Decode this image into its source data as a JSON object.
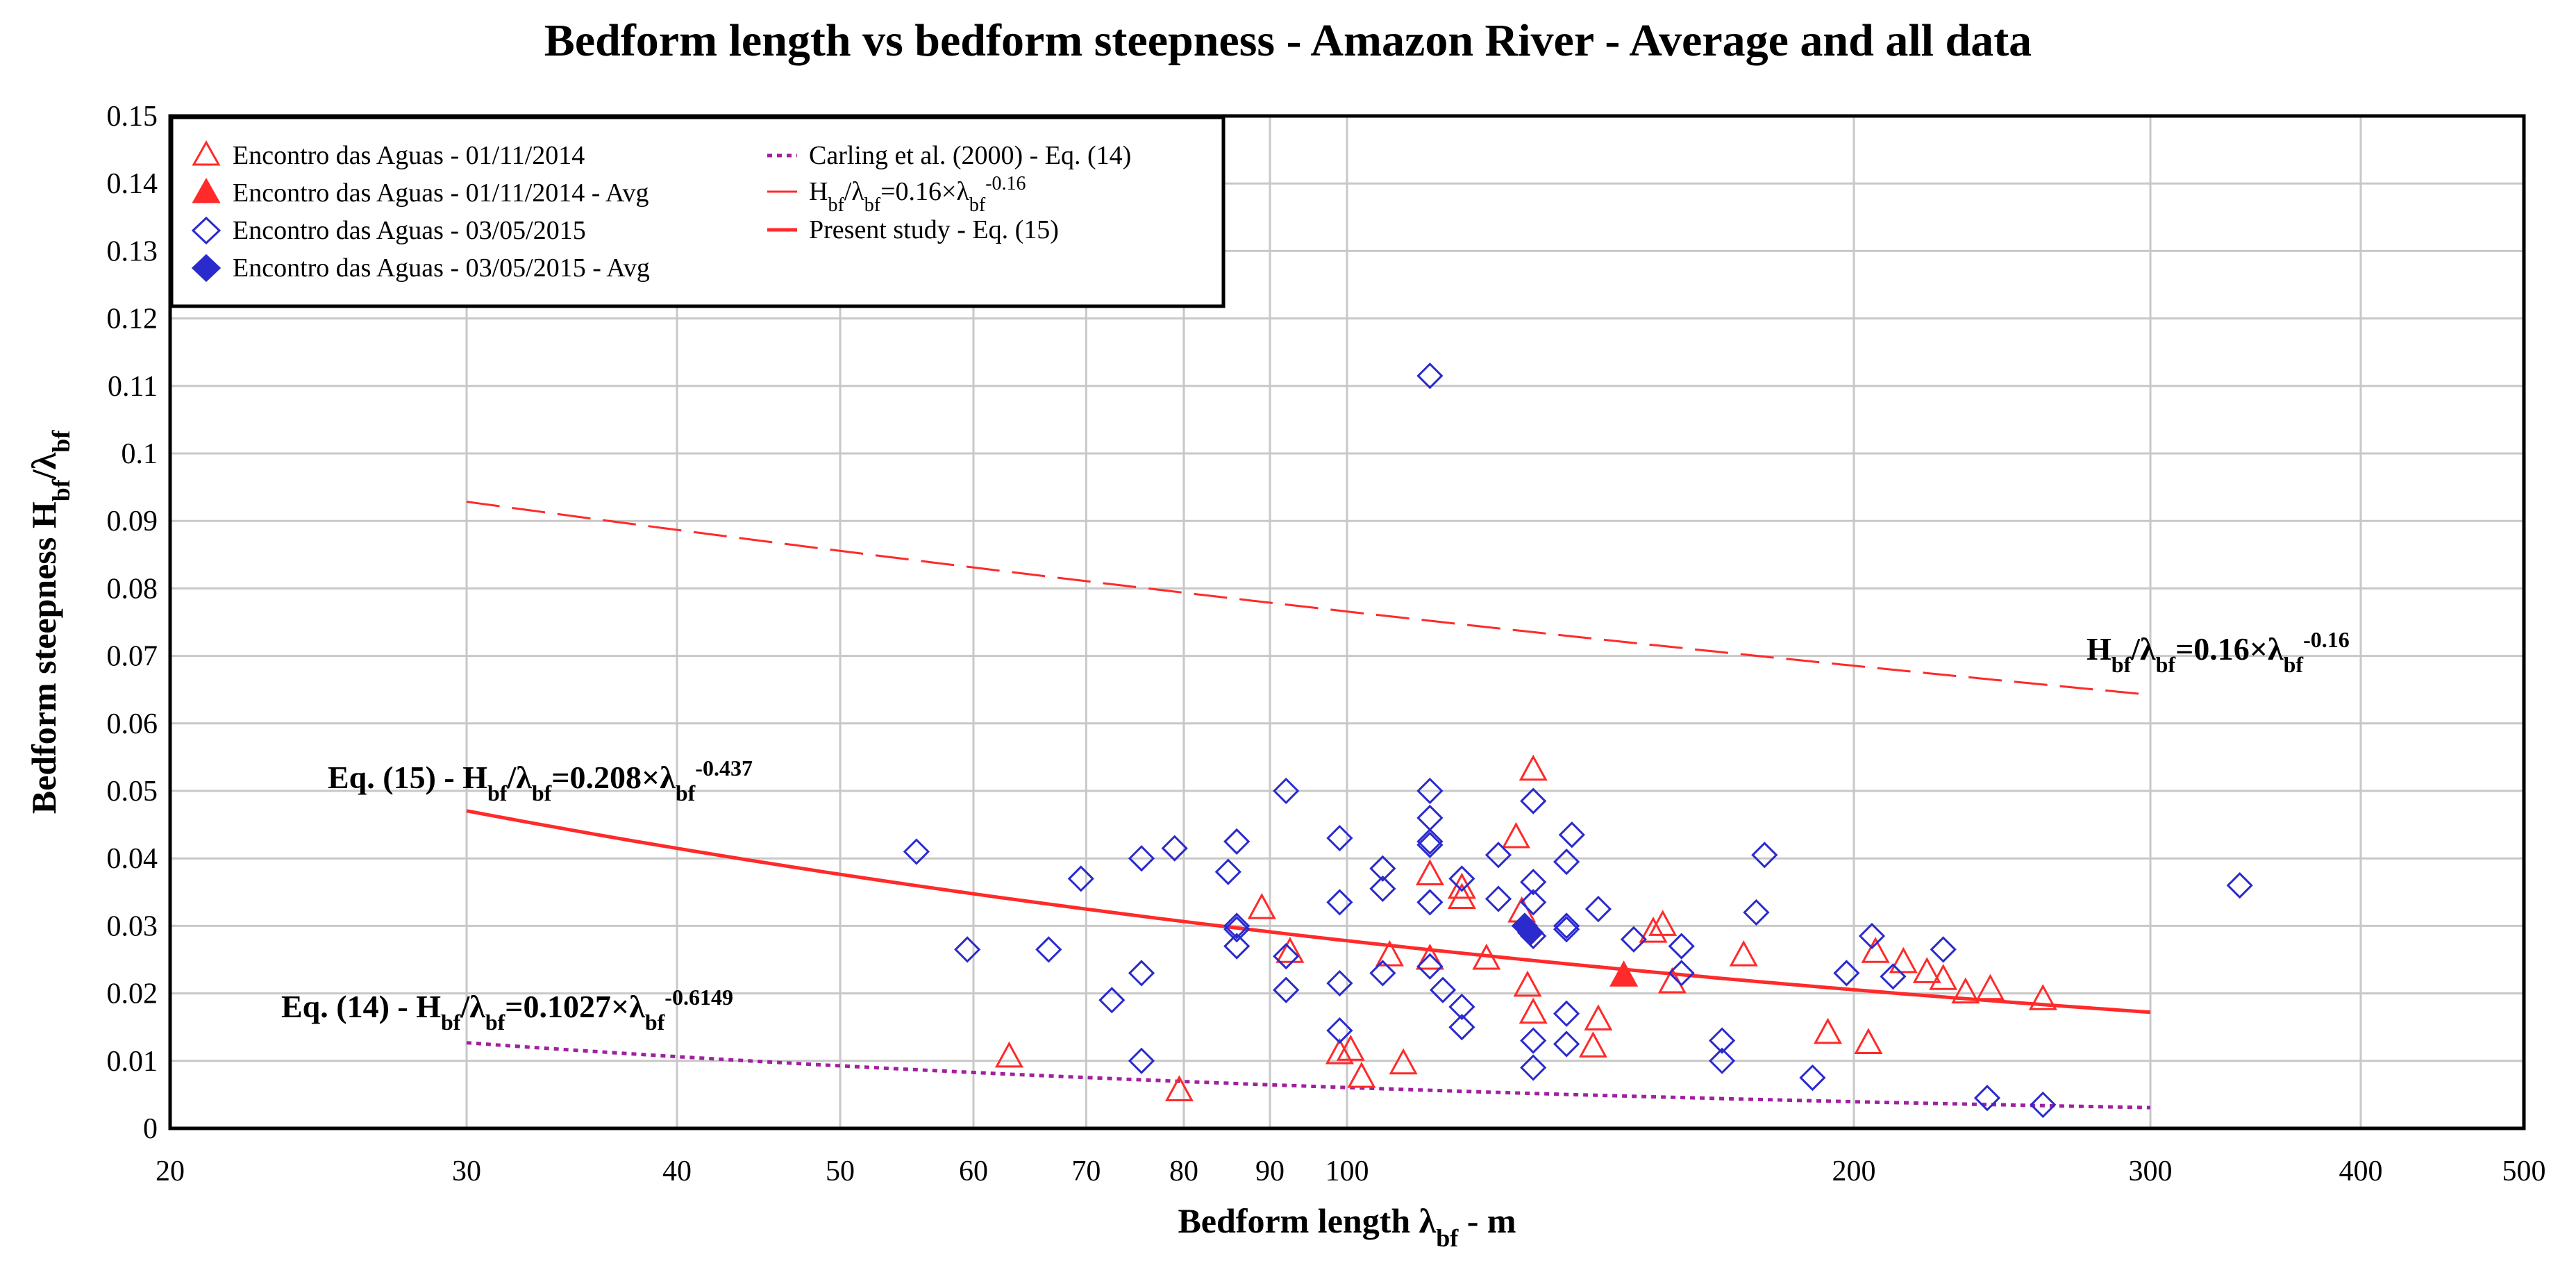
{
  "chart_data": {
    "type": "scatter",
    "title": "Bedform length vs bedform steepness - Amazon River - Average and all data",
    "xlabel": {
      "main": "Bedform length λ",
      "sub": "bf",
      "tail": " - m"
    },
    "ylabel": {
      "main": "Bedform steepness H",
      "sub1": "bf",
      "mid": "/λ",
      "sub2": "bf"
    },
    "x_scale": "log",
    "xlim": [
      20,
      500
    ],
    "ylim": [
      0,
      0.15
    ],
    "grid": true,
    "legend_position": "top-left",
    "x_ticks": [
      {
        "value": 20,
        "label": "20"
      },
      {
        "value": 30,
        "label": "30"
      },
      {
        "value": 40,
        "label": "40"
      },
      {
        "value": 50,
        "label": "50"
      },
      {
        "value": 60,
        "label": "60"
      },
      {
        "value": 70,
        "label": "70"
      },
      {
        "value": 80,
        "label": "80"
      },
      {
        "value": 90,
        "label": "90"
      },
      {
        "value": 100,
        "label": "100"
      },
      {
        "value": 200,
        "label": "200"
      },
      {
        "value": 300,
        "label": "300"
      },
      {
        "value": 400,
        "label": "400"
      },
      {
        "value": 500,
        "label": "500"
      }
    ],
    "y_ticks": [
      {
        "value": 0,
        "label": "0"
      },
      {
        "value": 0.01,
        "label": "0.01"
      },
      {
        "value": 0.02,
        "label": "0.02"
      },
      {
        "value": 0.03,
        "label": "0.03"
      },
      {
        "value": 0.04,
        "label": "0.04"
      },
      {
        "value": 0.05,
        "label": "0.05"
      },
      {
        "value": 0.06,
        "label": "0.06"
      },
      {
        "value": 0.07,
        "label": "0.07"
      },
      {
        "value": 0.08,
        "label": "0.08"
      },
      {
        "value": 0.09,
        "label": "0.09"
      },
      {
        "value": 0.1,
        "label": "0.1"
      },
      {
        "value": 0.11,
        "label": "0.11"
      },
      {
        "value": 0.12,
        "label": "0.12"
      },
      {
        "value": 0.13,
        "label": "0.13"
      },
      {
        "value": 0.14,
        "label": "0.14"
      },
      {
        "value": 0.15,
        "label": "0.15"
      }
    ],
    "colors": {
      "red": "#ff2a2a",
      "blue": "#2a2acd",
      "purple": "#a020a0",
      "grid": "#c8c8c8"
    },
    "series": [
      {
        "name": "Encontro das Aguas - 01/11/2014",
        "marker": "triangle-open",
        "color": "#ff2a2a",
        "points": [
          [
            63,
            0.0105
          ],
          [
            79.5,
            0.0055
          ],
          [
            89,
            0.0325
          ],
          [
            92.5,
            0.026
          ],
          [
            99,
            0.011
          ],
          [
            100.5,
            0.0115
          ],
          [
            102,
            0.0075
          ],
          [
            106,
            0.0255
          ],
          [
            108,
            0.0095
          ],
          [
            112,
            0.0375
          ],
          [
            112,
            0.025
          ],
          [
            117,
            0.034
          ],
          [
            117,
            0.0355
          ],
          [
            121,
            0.025
          ],
          [
            126,
            0.043
          ],
          [
            127,
            0.032
          ],
          [
            129,
            0.053
          ],
          [
            128,
            0.021
          ],
          [
            129,
            0.017
          ],
          [
            141,
            0.016
          ],
          [
            140,
            0.012
          ],
          [
            152,
            0.029
          ],
          [
            154,
            0.03
          ],
          [
            156,
            0.0215
          ],
          [
            172,
            0.0255
          ],
          [
            193,
            0.014
          ],
          [
            204,
            0.0125
          ],
          [
            206,
            0.026
          ],
          [
            214,
            0.0245
          ],
          [
            221,
            0.023
          ],
          [
            226,
            0.022
          ],
          [
            233,
            0.02
          ],
          [
            241,
            0.0205
          ],
          [
            259,
            0.019
          ]
        ]
      },
      {
        "name": "Encontro das Aguas - 01/11/2014 - Avg",
        "marker": "triangle-filled",
        "color": "#ff2a2a",
        "points": [
          [
            146,
            0.0225
          ]
        ]
      },
      {
        "name": "Encontro das Aguas - 03/05/2015",
        "marker": "diamond-open",
        "color": "#2a2acd",
        "points": [
          [
            55.5,
            0.041
          ],
          [
            59.5,
            0.0265
          ],
          [
            66.5,
            0.0265
          ],
          [
            69.5,
            0.037
          ],
          [
            72.5,
            0.019
          ],
          [
            75.5,
            0.04
          ],
          [
            75.5,
            0.023
          ],
          [
            75.5,
            0.01
          ],
          [
            79,
            0.0415
          ],
          [
            85,
            0.038
          ],
          [
            86,
            0.0425
          ],
          [
            86,
            0.0295
          ],
          [
            86,
            0.03
          ],
          [
            86,
            0.027
          ],
          [
            92,
            0.05
          ],
          [
            92,
            0.0255
          ],
          [
            92,
            0.0205
          ],
          [
            99,
            0.043
          ],
          [
            99,
            0.0335
          ],
          [
            99,
            0.0215
          ],
          [
            99,
            0.0145
          ],
          [
            105,
            0.0385
          ],
          [
            105,
            0.0355
          ],
          [
            105,
            0.023
          ],
          [
            112,
            0.1115
          ],
          [
            112,
            0.05
          ],
          [
            112,
            0.046
          ],
          [
            112,
            0.0425
          ],
          [
            112,
            0.042
          ],
          [
            112,
            0.0335
          ],
          [
            112,
            0.024
          ],
          [
            114,
            0.0205
          ],
          [
            117,
            0.037
          ],
          [
            117,
            0.018
          ],
          [
            117,
            0.015
          ],
          [
            123,
            0.0405
          ],
          [
            123,
            0.034
          ],
          [
            129,
            0.0485
          ],
          [
            129,
            0.0365
          ],
          [
            129,
            0.0335
          ],
          [
            129,
            0.0285
          ],
          [
            129,
            0.013
          ],
          [
            129,
            0.009
          ],
          [
            135,
            0.0395
          ],
          [
            136,
            0.0435
          ],
          [
            135,
            0.03
          ],
          [
            135,
            0.0295
          ],
          [
            135,
            0.017
          ],
          [
            135,
            0.0125
          ],
          [
            141,
            0.0325
          ],
          [
            148,
            0.028
          ],
          [
            158,
            0.027
          ],
          [
            158,
            0.023
          ],
          [
            167,
            0.013
          ],
          [
            167,
            0.01
          ],
          [
            175,
            0.032
          ],
          [
            177,
            0.0405
          ],
          [
            189,
            0.0075
          ],
          [
            198,
            0.023
          ],
          [
            205,
            0.0285
          ],
          [
            211,
            0.0225
          ],
          [
            226,
            0.0265
          ],
          [
            240,
            0.0045
          ],
          [
            259,
            0.0035
          ],
          [
            339,
            0.036
          ]
        ]
      },
      {
        "name": "Encontro das Aguas - 03/05/2015 - Avg",
        "marker": "diamond-filled",
        "color": "#2a2acd",
        "points": [
          [
            127.5,
            0.03
          ],
          [
            128.5,
            0.029
          ]
        ]
      }
    ],
    "lines": [
      {
        "name": "Carling et al. (2000) - Eq. (14)",
        "style": "dotted",
        "color": "#a020a0",
        "coef": 0.1027,
        "exp": -0.6149,
        "x_range": [
          30,
          300
        ]
      },
      {
        "name_parts": {
          "a": "H",
          "b": "bf",
          "c": "/λ",
          "d": "bf",
          "e": "=0.16×λ",
          "f": "bf",
          "g": "-0.16"
        },
        "style": "dashed",
        "color": "#ff2a2a",
        "coef": 0.16,
        "exp": -0.16,
        "x_range": [
          30,
          300
        ]
      },
      {
        "name": "Present study - Eq. (15)",
        "style": "solid",
        "color": "#ff2a2a",
        "coef": 0.208,
        "exp": -0.437,
        "x_range": [
          30,
          300
        ]
      }
    ],
    "annotations": {
      "eq15": {
        "a": "Eq. (15) - H",
        "b": "bf",
        "c": "/λ",
        "d": "bf",
        "e": "=0.208×λ",
        "f": "bf",
        "g": "-0.437"
      },
      "eq14": {
        "a": "Eq. (14) - H",
        "b": "bf",
        "c": "/λ",
        "d": "bf",
        "e": "=0.1027×λ",
        "f": "bf",
        "g": "-0.6149"
      },
      "rel016": {
        "a": "H",
        "b": "bf",
        "c": "/λ",
        "d": "bf",
        "e": "=0.16×λ",
        "f": "bf",
        "g": "-0.16"
      }
    }
  }
}
